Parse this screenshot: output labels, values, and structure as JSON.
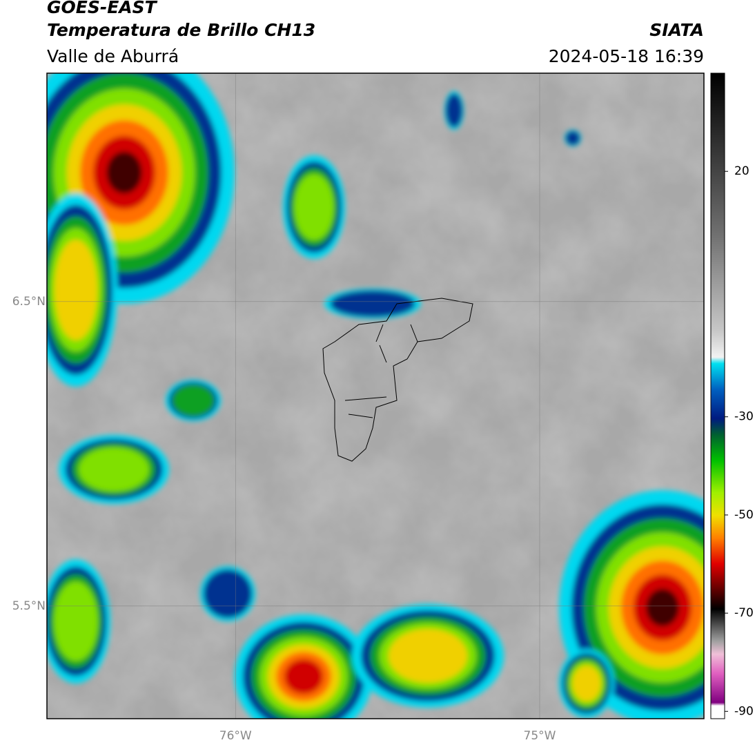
{
  "map": {
    "title": "GOES-EAST",
    "subtitle": "Temperatura de Brillo CH13",
    "region": "Valle de Aburrá",
    "source": "SIATA",
    "datetime": "2024-05-18 16:39",
    "lonlim": [
      -76.62,
      -74.46
    ],
    "latlim": [
      5.13,
      7.25
    ],
    "lonticks": [
      {
        "value": -76,
        "label": "76°W"
      },
      {
        "value": -75,
        "label": "75°W"
      }
    ],
    "latticks": [
      {
        "value": 6.5,
        "label": "6.5°N"
      },
      {
        "value": 5.5,
        "label": "5.5°N"
      }
    ],
    "colorbar": {
      "lim": [
        -91.5,
        40
      ],
      "ticks": [
        20,
        -30,
        -50,
        -70,
        -90
      ]
    }
  }
}
